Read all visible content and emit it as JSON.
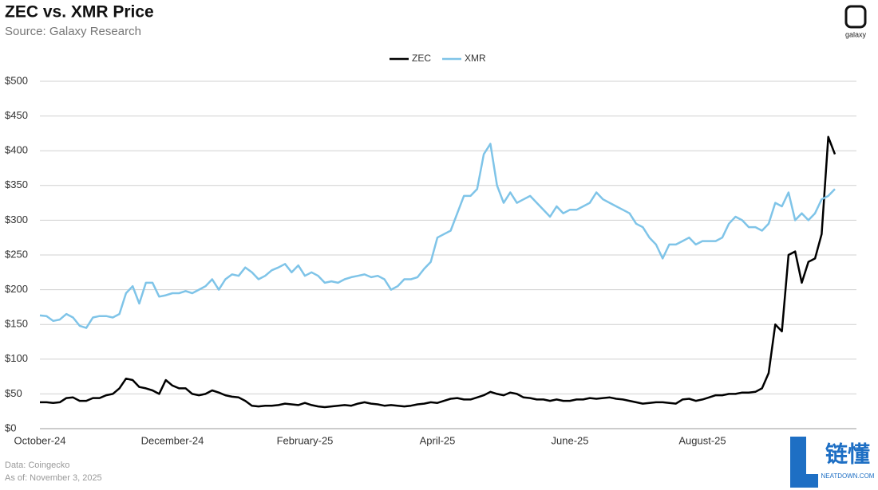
{
  "chart_data": {
    "type": "line",
    "title": "ZEC vs. XMR Price",
    "subtitle": "Source: Galaxy Research",
    "logo": "galaxy",
    "footer": [
      "Data: Coingecko",
      "As of: November 3, 2025"
    ],
    "watermark": [
      "链懂",
      "NEATDOWN.COM"
    ],
    "legend": "top",
    "grid": true,
    "ylim": [
      0,
      500
    ],
    "yticks": [
      {
        "value": 0,
        "label": "$0"
      },
      {
        "value": 50,
        "label": "$50"
      },
      {
        "value": 100,
        "label": "$100"
      },
      {
        "value": 150,
        "label": "$150"
      },
      {
        "value": 200,
        "label": "$200"
      },
      {
        "value": 250,
        "label": "$250"
      },
      {
        "value": 300,
        "label": "$300"
      },
      {
        "value": 350,
        "label": "$350"
      },
      {
        "value": 400,
        "label": "$400"
      },
      {
        "value": 450,
        "label": "$450"
      },
      {
        "value": 500,
        "label": "$500"
      }
    ],
    "categories": [
      "October-24",
      null,
      null,
      null,
      null,
      null,
      null,
      null,
      null,
      null,
      null,
      null,
      null,
      null,
      null,
      null,
      null,
      null,
      null,
      null,
      "December-24",
      null,
      null,
      null,
      null,
      null,
      null,
      null,
      null,
      null,
      null,
      null,
      null,
      null,
      null,
      null,
      null,
      null,
      null,
      null,
      "February-25",
      null,
      null,
      null,
      null,
      null,
      null,
      null,
      null,
      null,
      null,
      null,
      null,
      null,
      null,
      null,
      null,
      null,
      null,
      null,
      "April-25",
      null,
      null,
      null,
      null,
      null,
      null,
      null,
      null,
      null,
      null,
      null,
      null,
      null,
      null,
      null,
      null,
      null,
      null,
      null,
      "June-25",
      null,
      null,
      null,
      null,
      null,
      null,
      null,
      null,
      null,
      null,
      null,
      null,
      null,
      null,
      null,
      null,
      null,
      null,
      null,
      "August-25",
      null,
      null,
      null,
      null,
      null,
      null,
      null,
      null,
      null,
      null,
      null,
      null,
      null,
      null,
      null,
      null,
      null,
      null,
      null,
      null
    ],
    "series": [
      {
        "name": "ZEC",
        "color": "#000000",
        "values": [
          38,
          38,
          37,
          38,
          44,
          45,
          40,
          40,
          44,
          44,
          48,
          50,
          58,
          72,
          70,
          60,
          58,
          55,
          50,
          70,
          62,
          58,
          58,
          50,
          48,
          50,
          55,
          52,
          48,
          46,
          45,
          40,
          33,
          32,
          33,
          33,
          34,
          36,
          35,
          34,
          37,
          34,
          32,
          31,
          32,
          33,
          34,
          33,
          36,
          38,
          36,
          35,
          33,
          34,
          33,
          32,
          33,
          35,
          36,
          38,
          37,
          40,
          43,
          44,
          42,
          42,
          45,
          48,
          53,
          50,
          48,
          52,
          50,
          45,
          44,
          42,
          42,
          40,
          42,
          40,
          40,
          42,
          42,
          44,
          43,
          44,
          45,
          43,
          42,
          40,
          38,
          36,
          37,
          38,
          38,
          37,
          36,
          42,
          43,
          40,
          42,
          45,
          48,
          48,
          50,
          50,
          52,
          52,
          53,
          58,
          80,
          150,
          140,
          250,
          255,
          210,
          240,
          245,
          280,
          420,
          395
        ]
      },
      {
        "name": "XMR",
        "color": "#7fc4e8",
        "values": [
          163,
          162,
          155,
          157,
          165,
          160,
          148,
          145,
          160,
          162,
          162,
          160,
          165,
          195,
          205,
          180,
          210,
          210,
          190,
          192,
          195,
          195,
          198,
          195,
          200,
          205,
          215,
          200,
          215,
          222,
          220,
          232,
          225,
          215,
          220,
          228,
          232,
          237,
          225,
          235,
          220,
          225,
          220,
          210,
          212,
          210,
          215,
          218,
          220,
          222,
          218,
          220,
          215,
          200,
          205,
          215,
          215,
          218,
          230,
          240,
          275,
          280,
          285,
          310,
          335,
          335,
          345,
          395,
          410,
          350,
          325,
          340,
          325,
          330,
          335,
          325,
          315,
          305,
          320,
          310,
          315,
          315,
          320,
          325,
          340,
          330,
          325,
          320,
          315,
          310,
          295,
          290,
          275,
          265,
          245,
          265,
          265,
          270,
          275,
          265,
          270,
          270,
          270,
          275,
          295,
          305,
          300,
          290,
          290,
          285,
          295,
          325,
          320,
          340,
          300,
          310,
          300,
          310,
          330,
          335,
          345
        ]
      }
    ]
  }
}
